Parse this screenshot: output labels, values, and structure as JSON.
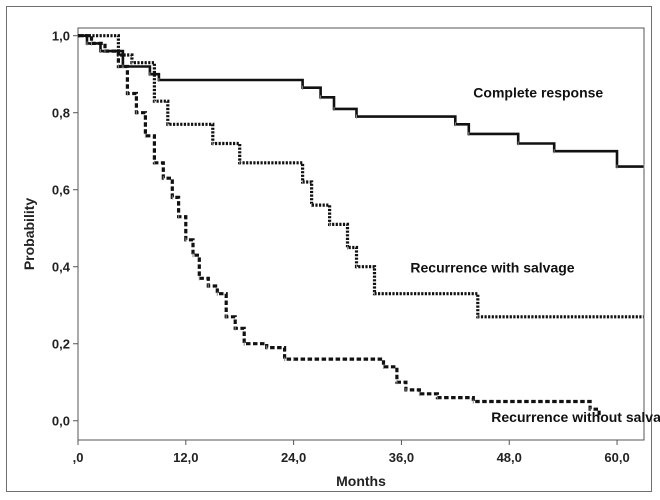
{
  "chart_data": {
    "type": "line",
    "title": "",
    "xlabel": "Months",
    "ylabel": "Probability",
    "xlim": [
      0,
      63
    ],
    "ylim": [
      -0.05,
      1.02
    ],
    "xticks": [
      {
        "value": 0,
        "label": ",0"
      },
      {
        "value": 12,
        "label": "12,0"
      },
      {
        "value": 24,
        "label": "24,0"
      },
      {
        "value": 36,
        "label": "36,0"
      },
      {
        "value": 48,
        "label": "48,0"
      },
      {
        "value": 60,
        "label": "60,0"
      }
    ],
    "yticks": [
      {
        "value": 0,
        "label": "0,0"
      },
      {
        "value": 0.2,
        "label": "0,2"
      },
      {
        "value": 0.4,
        "label": "0,4"
      },
      {
        "value": 0.6,
        "label": "0,6"
      },
      {
        "value": 0.8,
        "label": "0,8"
      },
      {
        "value": 1.0,
        "label": "1,0"
      }
    ],
    "grid": false,
    "series": [
      {
        "name": "Complete response",
        "style": "solid",
        "x": [
          0,
          1,
          2.5,
          5,
          8,
          9,
          25,
          27,
          28.5,
          31,
          42,
          43.5,
          49,
          53,
          60,
          63
        ],
        "y": [
          1.0,
          0.98,
          0.96,
          0.92,
          0.9,
          0.885,
          0.865,
          0.84,
          0.81,
          0.79,
          0.77,
          0.745,
          0.72,
          0.7,
          0.66,
          0.66
        ]
      },
      {
        "name": "Recurrence with salvage",
        "style": "dotted",
        "x": [
          0,
          4.5,
          6,
          8.5,
          10,
          15,
          18,
          25,
          26,
          28,
          30,
          31,
          33,
          44.5,
          63
        ],
        "y": [
          1.0,
          0.95,
          0.93,
          0.83,
          0.77,
          0.72,
          0.67,
          0.62,
          0.56,
          0.51,
          0.45,
          0.4,
          0.33,
          0.27,
          0.27
        ]
      },
      {
        "name": "Recurrence without salvage",
        "style": "dashed",
        "x": [
          0,
          1.5,
          3,
          4.5,
          5.5,
          6.5,
          7.5,
          8.5,
          9.5,
          10.5,
          11.2,
          12,
          12.8,
          13.5,
          14.5,
          15.5,
          16.5,
          17.5,
          18.5,
          21,
          23,
          24,
          34,
          35.5,
          36.5,
          38,
          40,
          44,
          57,
          58
        ],
        "y": [
          1.0,
          0.98,
          0.96,
          0.92,
          0.85,
          0.8,
          0.74,
          0.67,
          0.63,
          0.58,
          0.53,
          0.47,
          0.43,
          0.37,
          0.35,
          0.33,
          0.27,
          0.24,
          0.2,
          0.19,
          0.16,
          0.16,
          0.14,
          0.1,
          0.08,
          0.07,
          0.06,
          0.05,
          0.03,
          0.01
        ]
      }
    ],
    "annotations": [
      {
        "text": "Complete response",
        "x": 44,
        "y": 0.84
      },
      {
        "text": "Recurrence with salvage",
        "x": 37,
        "y": 0.385
      },
      {
        "text": "Recurrence without salvage",
        "x": 46,
        "y": -0.003
      }
    ]
  }
}
